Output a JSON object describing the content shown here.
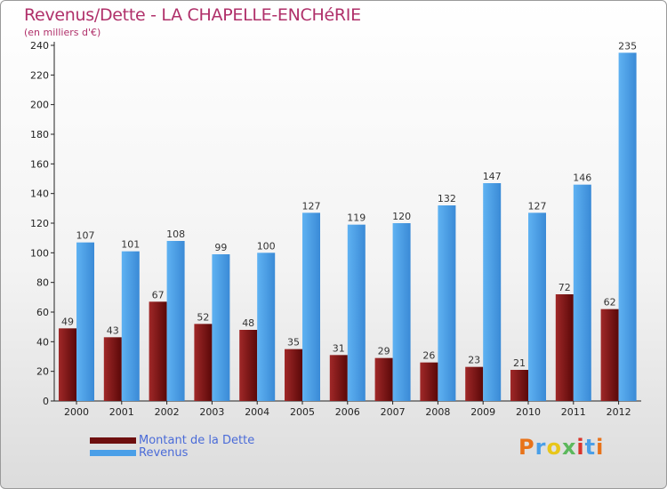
{
  "chart_data": {
    "type": "bar",
    "title": "Revenus/Dette - LA CHAPELLE-ENCHéRIE",
    "subtitle": "(en milliers d'€)",
    "categories": [
      "2000",
      "2001",
      "2002",
      "2003",
      "2004",
      "2005",
      "2006",
      "2007",
      "2008",
      "2009",
      "2010",
      "2011",
      "2012"
    ],
    "series": [
      {
        "name": "Montant de la Dette",
        "values": [
          49,
          43,
          67,
          52,
          48,
          35,
          31,
          29,
          26,
          23,
          21,
          72,
          62
        ],
        "color": "#6e0f0f"
      },
      {
        "name": "Revenus",
        "values": [
          107,
          101,
          108,
          99,
          100,
          127,
          119,
          120,
          132,
          147,
          127,
          146,
          235
        ],
        "color": "#4a9fe8"
      }
    ],
    "ylim": [
      0,
      240
    ],
    "yticks": [
      0,
      20,
      40,
      60,
      80,
      100,
      120,
      140,
      160,
      180,
      200,
      220,
      240
    ],
    "grid": false,
    "legend_position": "bottom-left"
  },
  "logo": {
    "text": "Proxiti",
    "colors": [
      "#e8731a",
      "#4a9fe8",
      "#e8c61a",
      "#5cb85c",
      "#d9342b",
      "#4a9fe8",
      "#e8731a"
    ]
  }
}
